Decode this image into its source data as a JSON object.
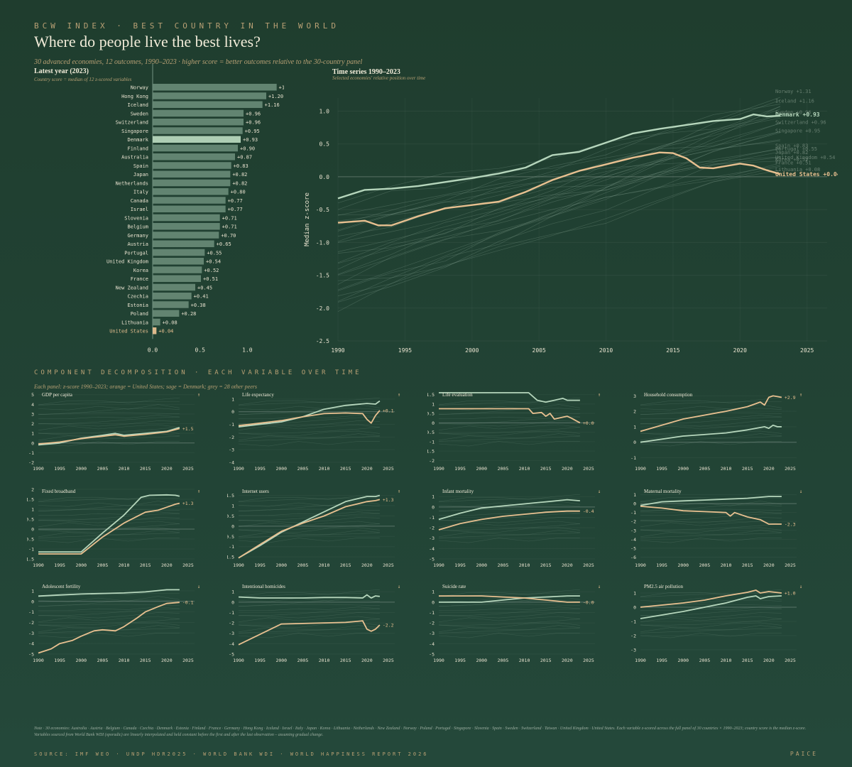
{
  "header": {
    "kicker": "BCW INDEX · BEST COUNTRY IN THE WORLD",
    "title": "Where do people live the best lives?",
    "subtitle": "30 advanced economies, 12 outcomes, 1990–2023 · higher score = better outcomes relative to the 30-country panel"
  },
  "colors": {
    "us": "#e8c090",
    "denmark": "#b6d6bc",
    "peer": "#8aa898",
    "bar": "#6f907c"
  },
  "chart_data": [
    {
      "type": "bar",
      "title": "Latest year (2023)",
      "subtitle": "Country score = median of 12 z-scored variables",
      "categories": [
        "Norway",
        "Hong Kong",
        "Iceland",
        "Sweden",
        "Switzerland",
        "Singapore",
        "Denmark",
        "Finland",
        "Australia",
        "Spain",
        "Japan",
        "Netherlands",
        "Italy",
        "Canada",
        "Israel",
        "Slovenia",
        "Belgium",
        "Germany",
        "Austria",
        "Portugal",
        "United Kingdom",
        "Korea",
        "France",
        "New Zealand",
        "Czechia",
        "Estonia",
        "Poland",
        "Lithuania",
        "United States"
      ],
      "values": [
        1.31,
        1.2,
        1.16,
        0.96,
        0.96,
        0.95,
        0.93,
        0.9,
        0.87,
        0.83,
        0.82,
        0.82,
        0.8,
        0.77,
        0.77,
        0.71,
        0.71,
        0.7,
        0.65,
        0.55,
        0.54,
        0.52,
        0.51,
        0.45,
        0.41,
        0.38,
        0.28,
        0.08,
        0.04
      ],
      "value_labels": [
        "+1.31",
        "+1.20",
        "+1.16",
        "+0.96",
        "+0.96",
        "+0.95",
        "+0.93",
        "+0.90",
        "+0.87",
        "+0.83",
        "+0.82",
        "+0.82",
        "+0.80",
        "+0.77",
        "+0.77",
        "+0.71",
        "+0.71",
        "+0.70",
        "+0.65",
        "+0.55",
        "+0.54",
        "+0.52",
        "+0.51",
        "+0.45",
        "+0.41",
        "+0.38",
        "+0.28",
        "+0.08",
        "+0.04"
      ],
      "xlim": [
        0,
        1.35
      ],
      "xticks": [
        "0.0",
        "0.5",
        "1.0"
      ],
      "highlight": {
        "Denmark": "denmark",
        "United States": "us"
      }
    },
    {
      "type": "line",
      "title": "Time series 1990–2023",
      "subtitle": "Selected economies' relative position over time",
      "ylabel": "Median z-score",
      "xlim": [
        1990,
        2026.5
      ],
      "ylim": [
        -2.5,
        1.2
      ],
      "xticks": [
        "1990",
        "1995",
        "2000",
        "2005",
        "2010",
        "2015",
        "2020",
        "2025"
      ],
      "yticks": [
        "1.0",
        "0.5",
        "0.0",
        "-0.5",
        "-1.0",
        "-1.5",
        "-2.0",
        "-2.5"
      ],
      "series": [
        {
          "name": "Denmark",
          "role": "denmark",
          "end_label": "Denmark  +0.93",
          "x": [
            1990,
            1992,
            1994,
            1996,
            1998,
            2000,
            2002,
            2004,
            2006,
            2008,
            2010,
            2012,
            2014,
            2016,
            2018,
            2020,
            2021,
            2022,
            2023
          ],
          "y": [
            -0.33,
            -0.2,
            -0.18,
            -0.14,
            -0.08,
            -0.02,
            0.05,
            0.14,
            0.33,
            0.38,
            0.52,
            0.66,
            0.73,
            0.79,
            0.85,
            0.88,
            0.95,
            0.92,
            0.93
          ]
        },
        {
          "name": "United States",
          "role": "us",
          "end_label": "United States  +0.04",
          "x": [
            1990,
            1992,
            1993,
            1994,
            1996,
            1998,
            2000,
            2002,
            2004,
            2006,
            2008,
            2010,
            2012,
            2014,
            2015,
            2016,
            2017,
            2018,
            2020,
            2021,
            2022,
            2023
          ],
          "y": [
            -0.7,
            -0.67,
            -0.74,
            -0.74,
            -0.6,
            -0.48,
            -0.43,
            -0.38,
            -0.23,
            -0.05,
            0.09,
            0.19,
            0.29,
            0.37,
            0.36,
            0.28,
            0.14,
            0.13,
            0.2,
            0.17,
            0.1,
            0.04
          ]
        }
      ],
      "peer_end_labels": [
        {
          "label": "Norway  +1.31",
          "y": 1.31
        },
        {
          "label": "Iceland  +1.16",
          "y": 1.16
        },
        {
          "label": "Sweden  +0.96",
          "y": 0.99
        },
        {
          "label": "Switzerland  +0.96",
          "y": 0.84
        },
        {
          "label": "Singapore  +0.95",
          "y": 0.71
        },
        {
          "label": "Spain  +0.83",
          "y": 0.48
        },
        {
          "label": "Portugal  +0.55",
          "y": 0.43
        },
        {
          "label": "Japan  +0.82",
          "y": 0.38
        },
        {
          "label": "United Kingdom  +0.54",
          "y": 0.3
        },
        {
          "label": "Korea  +0.52",
          "y": 0.27
        },
        {
          "label": "France  +0.51",
          "y": 0.22
        },
        {
          "label": "Lithuania  +0.08",
          "y": 0.12
        }
      ]
    }
  ],
  "components": {
    "kicker": "COMPONENT DECOMPOSITION · EACH VARIABLE OVER TIME",
    "subtitle": "Each panel: z-score 1990–2023; orange = United States; sage = Denmark; grey = 28 other peers",
    "xticks": [
      "1990",
      "1995",
      "2000",
      "2005",
      "2010",
      "2015",
      "2020",
      "2025"
    ],
    "panels": [
      {
        "title": "GDP per capita",
        "arrow": "↑",
        "us_label": "+1.5",
        "ylim": [
          -2,
          5.2
        ],
        "yticks": [
          5,
          4,
          3,
          2,
          1,
          0,
          -1,
          -2
        ],
        "dk_x": [
          1990,
          1995,
          2000,
          2005,
          2008,
          2010,
          2015,
          2020,
          2023
        ],
        "dk_y": [
          -0.2,
          0,
          0.5,
          0.8,
          1.0,
          0.8,
          1.0,
          1.2,
          1.6
        ],
        "us_x": [
          1990,
          1995,
          2000,
          2005,
          2008,
          2010,
          2015,
          2020,
          2023
        ],
        "us_y": [
          -0.1,
          0.1,
          0.45,
          0.7,
          0.85,
          0.7,
          0.9,
          1.15,
          1.5
        ]
      },
      {
        "title": "Life expectancy",
        "arrow": "↑",
        "us_label": "+0.1",
        "ylim": [
          -4,
          1.5
        ],
        "yticks": [
          1,
          0,
          -1,
          -2,
          -3,
          -4
        ],
        "dk_x": [
          1990,
          1995,
          2000,
          2005,
          2010,
          2015,
          2020,
          2022,
          2023
        ],
        "dk_y": [
          -1.2,
          -1.0,
          -0.8,
          -0.4,
          0.2,
          0.5,
          0.65,
          0.6,
          0.85
        ],
        "us_x": [
          1990,
          1995,
          2000,
          2005,
          2010,
          2015,
          2019,
          2020,
          2021,
          2022,
          2023
        ],
        "us_y": [
          -1.1,
          -0.9,
          -0.7,
          -0.4,
          -0.15,
          -0.1,
          -0.15,
          -0.6,
          -0.9,
          -0.3,
          0.1
        ]
      },
      {
        "title": "Life evaluation",
        "arrow": "↑",
        "us_label": "+0.0",
        "ylim": [
          -2.1,
          1.6
        ],
        "yticks": [
          1.5,
          1.0,
          0.5,
          0.0,
          -0.5,
          -1.0,
          -1.5,
          -2.0
        ],
        "dk_x": [
          1990,
          2011,
          2013,
          2015,
          2017,
          2019,
          2020,
          2021,
          2023
        ],
        "dk_y": [
          1.6,
          1.6,
          1.2,
          1.1,
          1.2,
          1.3,
          1.2,
          1.2,
          1.2
        ],
        "us_x": [
          1990,
          2011,
          2012,
          2014,
          2015,
          2016,
          2017,
          2019,
          2020,
          2021,
          2023
        ],
        "us_y": [
          0.75,
          0.75,
          0.5,
          0.55,
          0.35,
          0.5,
          0.2,
          0.3,
          0.35,
          0.25,
          0.0
        ]
      },
      {
        "title": "Household consumption",
        "arrow": "↑",
        "us_label": "+2.9",
        "ylim": [
          -1.3,
          3.2
        ],
        "yticks": [
          3,
          2,
          1,
          0,
          -1
        ],
        "dk_x": [
          1990,
          2000,
          2010,
          2015,
          2019,
          2020,
          2021,
          2022,
          2023
        ],
        "dk_y": [
          0,
          0.4,
          0.6,
          0.8,
          1.0,
          0.9,
          1.1,
          1.0,
          1.0
        ],
        "us_x": [
          1990,
          2000,
          2010,
          2015,
          2018,
          2019,
          2020,
          2021,
          2022,
          2023
        ],
        "us_y": [
          0.7,
          1.5,
          2.0,
          2.3,
          2.6,
          2.4,
          2.9,
          3.0,
          2.95,
          2.9
        ]
      },
      {
        "title": "Fixed broadband",
        "arrow": "↑",
        "us_label": "+1.3",
        "ylim": [
          -1.5,
          2.0
        ],
        "yticks": [
          2.0,
          1.5,
          1.0,
          0.5,
          0.0,
          -0.5,
          -1.0,
          -1.5
        ],
        "dk_x": [
          1990,
          2000,
          2005,
          2010,
          2014,
          2016,
          2020,
          2022,
          2023
        ],
        "dk_y": [
          -1.15,
          -1.15,
          -0.2,
          0.7,
          1.6,
          1.7,
          1.72,
          1.7,
          1.65
        ],
        "us_x": [
          1990,
          2000,
          2005,
          2010,
          2015,
          2018,
          2020,
          2022,
          2023
        ],
        "us_y": [
          -1.25,
          -1.25,
          -0.4,
          0.3,
          0.85,
          0.95,
          1.1,
          1.25,
          1.3
        ]
      },
      {
        "title": "Internet users",
        "arrow": "↑",
        "us_label": "+1.3",
        "ylim": [
          -1.6,
          1.8
        ],
        "yticks": [
          1.5,
          1.0,
          0.5,
          0.0,
          -0.5,
          -1.0,
          -1.5
        ],
        "dk_x": [
          1990,
          1995,
          2000,
          2005,
          2010,
          2015,
          2020,
          2022,
          2023
        ],
        "dk_y": [
          -1.55,
          -0.95,
          -0.3,
          0.2,
          0.7,
          1.2,
          1.45,
          1.45,
          1.5
        ],
        "us_x": [
          1990,
          1995,
          2000,
          2005,
          2010,
          2015,
          2020,
          2022,
          2023
        ],
        "us_y": [
          -1.55,
          -0.9,
          -0.25,
          0.15,
          0.5,
          0.95,
          1.2,
          1.25,
          1.3
        ]
      },
      {
        "title": "Infant mortality",
        "arrow": "↓",
        "us_label": "-0.4",
        "ylim": [
          -5,
          1.7
        ],
        "yticks": [
          1,
          0,
          -1,
          -2,
          -3,
          -4,
          -5
        ],
        "dk_x": [
          1990,
          1995,
          2000,
          2005,
          2010,
          2015,
          2020,
          2023
        ],
        "dk_y": [
          -1.2,
          -0.6,
          -0.1,
          0.1,
          0.3,
          0.5,
          0.7,
          0.6
        ],
        "us_x": [
          1990,
          1995,
          2000,
          2005,
          2010,
          2015,
          2020,
          2023
        ],
        "us_y": [
          -2.2,
          -1.6,
          -1.2,
          -0.9,
          -0.7,
          -0.5,
          -0.4,
          -0.4
        ]
      },
      {
        "title": "Maternal mortality",
        "arrow": "↓",
        "us_label": "-2.3",
        "ylim": [
          -6.2,
          1.6
        ],
        "yticks": [
          1,
          0,
          -1,
          -2,
          -3,
          -4,
          -5,
          -6
        ],
        "dk_x": [
          1990,
          1995,
          2000,
          2005,
          2010,
          2015,
          2020,
          2023
        ],
        "dk_y": [
          -0.2,
          0.2,
          0.3,
          0.4,
          0.5,
          0.6,
          0.8,
          0.8
        ],
        "us_x": [
          1990,
          1995,
          2000,
          2005,
          2010,
          2011,
          2012,
          2015,
          2018,
          2020,
          2023
        ],
        "us_y": [
          -0.3,
          -0.5,
          -0.8,
          -0.9,
          -1.0,
          -1.4,
          -1.0,
          -1.5,
          -1.8,
          -2.3,
          -2.3
        ]
      },
      {
        "title": "Adolescent fertility",
        "arrow": "↓",
        "us_label": "-0.1",
        "ylim": [
          -5,
          1.6
        ],
        "yticks": [
          1,
          0,
          -1,
          -2,
          -3,
          -4,
          -5
        ],
        "dk_x": [
          1990,
          1995,
          2000,
          2005,
          2010,
          2015,
          2020,
          2023
        ],
        "dk_y": [
          0.5,
          0.6,
          0.7,
          0.75,
          0.8,
          0.9,
          1.1,
          1.1
        ],
        "us_x": [
          1990,
          1993,
          1995,
          1998,
          2000,
          2003,
          2005,
          2008,
          2010,
          2013,
          2015,
          2018,
          2020,
          2023
        ],
        "us_y": [
          -4.9,
          -4.5,
          -4.0,
          -3.7,
          -3.3,
          -2.8,
          -2.7,
          -2.8,
          -2.4,
          -1.6,
          -1.0,
          -0.5,
          -0.2,
          -0.1
        ]
      },
      {
        "title": "Intentional homicides",
        "arrow": "↓",
        "us_label": "-2.2",
        "ylim": [
          -5,
          1.7
        ],
        "yticks": [
          1,
          0,
          -1,
          -2,
          -3,
          -4,
          -5
        ],
        "dk_x": [
          1990,
          1995,
          2000,
          2005,
          2010,
          2015,
          2019,
          2020,
          2021,
          2022,
          2023
        ],
        "dk_y": [
          0.5,
          0.4,
          0.4,
          0.4,
          0.45,
          0.45,
          0.4,
          0.7,
          0.4,
          0.6,
          0.55
        ],
        "us_x": [
          1990,
          2000,
          2005,
          2010,
          2015,
          2019,
          2020,
          2021,
          2022,
          2023
        ],
        "us_y": [
          -4.1,
          -2.1,
          -2.05,
          -2.0,
          -1.95,
          -1.8,
          -2.6,
          -2.8,
          -2.6,
          -2.2
        ]
      },
      {
        "title": "Suicide rate",
        "arrow": "↓",
        "us_label": "-0.0",
        "ylim": [
          -5,
          1.7
        ],
        "yticks": [
          1,
          0,
          -1,
          -2,
          -3,
          -4,
          -5
        ],
        "dk_x": [
          1990,
          2000,
          2005,
          2010,
          2015,
          2020,
          2023
        ],
        "dk_y": [
          0,
          0,
          0.2,
          0.4,
          0.5,
          0.6,
          0.6
        ],
        "us_x": [
          1990,
          2000,
          2005,
          2010,
          2015,
          2020,
          2023
        ],
        "us_y": [
          0.6,
          0.6,
          0.5,
          0.4,
          0.2,
          0.0,
          0.0
        ]
      },
      {
        "title": "PM2.5 air pollution",
        "arrow": "↓",
        "us_label": "+1.0",
        "ylim": [
          -3.3,
          1.6
        ],
        "yticks": [
          1,
          0,
          -1,
          -2,
          -3
        ],
        "dk_x": [
          1990,
          2000,
          2005,
          2010,
          2015,
          2017,
          2018,
          2020,
          2023
        ],
        "dk_y": [
          -0.8,
          -0.3,
          0,
          0.3,
          0.7,
          0.8,
          0.6,
          0.75,
          0.8
        ],
        "us_x": [
          1990,
          2000,
          2005,
          2010,
          2015,
          2017,
          2018,
          2020,
          2023
        ],
        "us_y": [
          0,
          0.3,
          0.5,
          0.8,
          1.05,
          1.2,
          1.0,
          1.1,
          1.0
        ]
      }
    ]
  },
  "footer": {
    "note": "Note · 30 economies: Australia · Austria · Belgium · Canada · Czechia · Denmark · Estonia · Finland · France · Germany · Hong Kong · Iceland · Israel · Italy · Japan · Korea · Lithuania · Netherlands · New Zealand · Norway · Poland · Portugal · Singapore · Slovenia · Spain · Sweden · Switzerland · Taiwan · United Kingdom · United States. Each variable z-scored across the full panel of 30 countries × 1990–2023; country score is the median z-score. Variables sourced from World Bank WDI (sporadic) are linearly interpolated and held constant before the first and after the last observation – assuming gradual change.",
    "source": "SOURCE: IMF WEO · UNDP HDR2025 · WORLD BANK WDI · WORLD HAPPINESS REPORT 2026",
    "brand": "PAICE"
  }
}
